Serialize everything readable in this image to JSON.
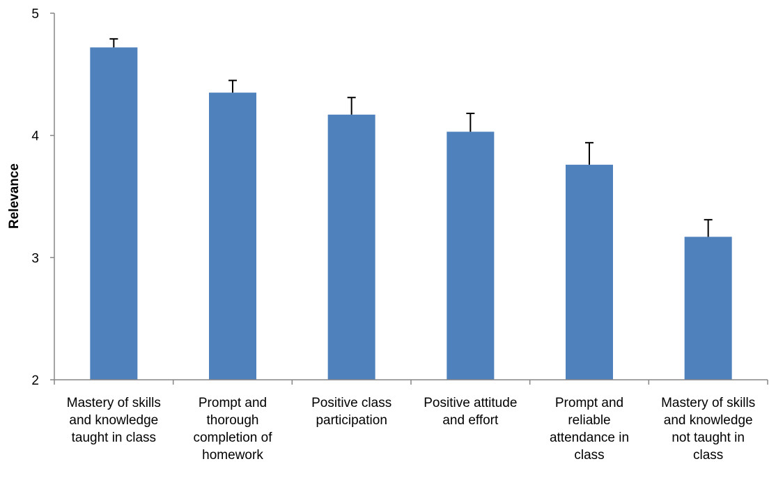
{
  "chart_data": {
    "type": "bar",
    "title": "",
    "xlabel": "",
    "ylabel": "Relevance",
    "ylim": [
      2,
      5
    ],
    "yticks": [
      "2",
      "3",
      "4",
      "5"
    ],
    "grid": false,
    "legend": "none",
    "bar_color": "#4f81bd",
    "categories": [
      [
        "Mastery of skills",
        "and knowledge",
        "taught in class"
      ],
      [
        "Prompt and",
        "thorough",
        "completion of",
        "homework"
      ],
      [
        "Positive class",
        "participation"
      ],
      [
        "Positive attitude",
        "and effort"
      ],
      [
        "Prompt and",
        "reliable",
        "attendance in",
        "class"
      ],
      [
        "Mastery of skills",
        "and knowledge",
        "not taught in",
        "class"
      ]
    ],
    "values": [
      4.72,
      4.35,
      4.17,
      4.03,
      3.76,
      3.17
    ],
    "error_upper": [
      0.07,
      0.1,
      0.14,
      0.15,
      0.18,
      0.14
    ]
  }
}
